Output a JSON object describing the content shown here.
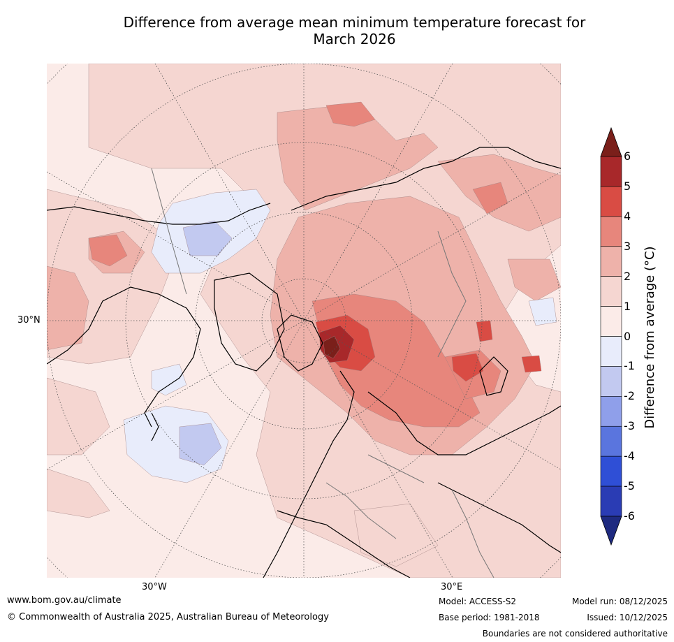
{
  "title": {
    "line1": "Difference from average mean minimum temperature forecast for",
    "line2": "March 2026"
  },
  "map": {
    "projection": "north polar stereographic",
    "lat_label_30N": "30°N",
    "lon_label_30W": "30°W",
    "lon_label_30E": "30°E"
  },
  "colorbar": {
    "title": "Difference from average (°C)",
    "ticks": [
      "6",
      "5",
      "4",
      "3",
      "2",
      "1",
      "0",
      "-1",
      "-2",
      "-3",
      "-4",
      "-5",
      "-6"
    ],
    "colors": {
      "above_6": "#7a1f1a",
      "5_6": "#a8282a",
      "4_5": "#d94c44",
      "3_4": "#e7867c",
      "2_3": "#eeb2aa",
      "1_2": "#f5d6d1",
      "0_1": "#fbebe8",
      "m1_0": "#e8ecfb",
      "m2_m1": "#c2c9f0",
      "m3_m2": "#8f9fea",
      "m4_m3": "#5a75de",
      "m5_m4": "#2f4fd6",
      "m6_m5": "#2a3cb4",
      "below_m6": "#1e2a80"
    }
  },
  "footer": {
    "website": "www.bom.gov.au/climate",
    "copyright": "© Commonwealth of Australia 2025, Australian Bureau of Meteorology",
    "model": "Model: ACCESS-S2",
    "base_period": "Base period: 1981-2018",
    "model_run": "Model run: 08/12/2025",
    "issued": "Issued: 10/12/2025",
    "disclaimer": "Boundaries are not considered authoritative"
  }
}
